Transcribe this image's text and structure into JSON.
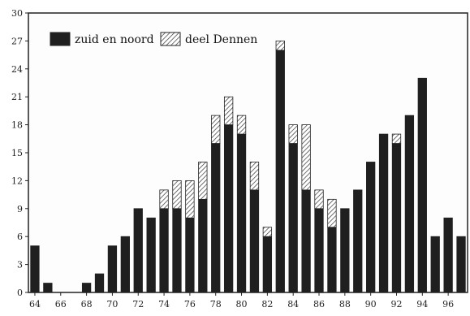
{
  "chart_data": {
    "type": "bar",
    "stacked": true,
    "categories": [
      "64",
      "65",
      "66",
      "67",
      "68",
      "69",
      "70",
      "71",
      "72",
      "73",
      "74",
      "75",
      "76",
      "77",
      "78",
      "79",
      "80",
      "81",
      "82",
      "83",
      "84",
      "85",
      "86",
      "87",
      "88",
      "89",
      "90",
      "91",
      "92",
      "93",
      "94",
      "95",
      "96",
      "97"
    ],
    "series": [
      {
        "name": "zuid en noord",
        "color": "#1f1f1f",
        "pattern": "solid",
        "values": [
          5,
          1,
          0,
          0,
          1,
          2,
          5,
          6,
          9,
          8,
          9,
          9,
          8,
          10,
          16,
          18,
          17,
          11,
          6,
          26,
          16,
          11,
          9,
          7,
          9,
          11,
          14,
          17,
          16,
          19,
          23,
          6,
          8,
          6
        ]
      },
      {
        "name": "deel Dennen",
        "color": "#ffffff",
        "pattern": "hatched",
        "values": [
          0,
          0,
          0,
          0,
          0,
          0,
          0,
          0,
          0,
          0,
          2,
          3,
          4,
          4,
          3,
          3,
          2,
          3,
          1,
          1,
          2,
          7,
          2,
          3,
          0,
          0,
          0,
          0,
          1,
          0,
          0,
          0,
          0,
          0
        ]
      }
    ],
    "x_tick_labels": [
      "64",
      "66",
      "68",
      "70",
      "72",
      "74",
      "76",
      "78",
      "80",
      "82",
      "84",
      "86",
      "88",
      "90",
      "92",
      "94",
      "96"
    ],
    "y_tick_labels": [
      "0",
      "3",
      "6",
      "9",
      "12",
      "15",
      "18",
      "21",
      "24",
      "27",
      "30"
    ],
    "ylim": [
      0,
      30
    ],
    "title": "",
    "xlabel": "",
    "ylabel": "",
    "grid": false,
    "legend_position": "top-left"
  }
}
